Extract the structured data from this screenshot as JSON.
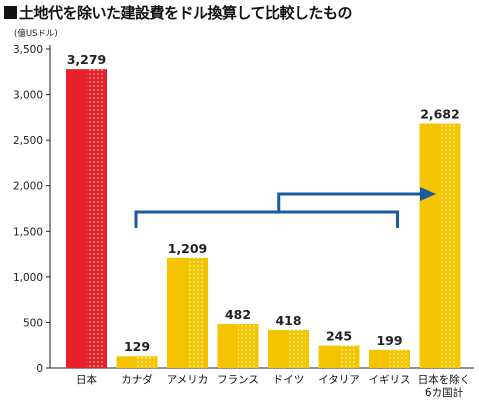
{
  "title": "土地代を除いた建設費をドル換算して比較したもの",
  "chart_data": {
    "type": "bar",
    "ylabel": "(億USドル)",
    "ylim": [
      0,
      3500
    ],
    "yticks": [
      "0",
      "500",
      "1,000",
      "1,500",
      "2,000",
      "2,500",
      "3,000",
      "3,500"
    ],
    "categories": [
      "日本",
      "カナダ",
      "アメリカ",
      "フランス",
      "ドイツ",
      "イタリア",
      "イギリス",
      "日本を除く6カ国計"
    ],
    "category_lines": [
      [
        "日本"
      ],
      [
        "カナダ"
      ],
      [
        "アメリカ"
      ],
      [
        "フランス"
      ],
      [
        "ドイツ"
      ],
      [
        "イタリア"
      ],
      [
        "イギリス"
      ],
      [
        "日本を除く",
        "6カ国計"
      ]
    ],
    "values": [
      3279,
      129,
      1209,
      482,
      418,
      245,
      199,
      2682
    ],
    "value_labels": [
      "3,279",
      "129",
      "1,209",
      "482",
      "418",
      "245",
      "199",
      "2,682"
    ],
    "colors": {
      "highlight": "#e8202a",
      "others": "#f5c400",
      "arrow": "#1a5aa0"
    },
    "highlight_index": 0,
    "annotation": {
      "type": "bracket-arrow",
      "from_categories": [
        1,
        6
      ],
      "to_category": 7
    }
  }
}
